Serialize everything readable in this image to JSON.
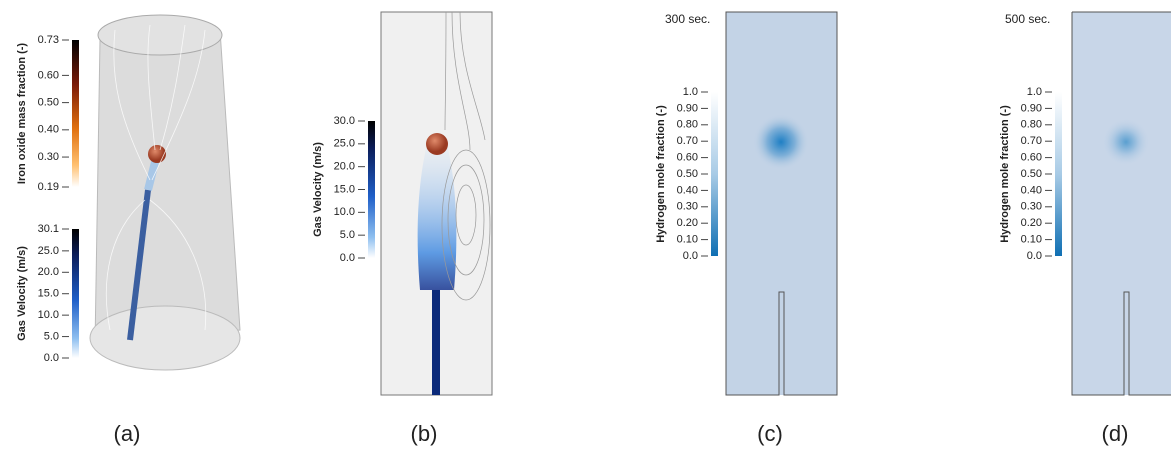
{
  "panels": [
    {
      "caption": "(a)",
      "colorbars": [
        {
          "label": "Iron oxide mass fraction (-)",
          "ticks": [
            "0.73",
            "0.60",
            "0.50",
            "0.40",
            "0.30",
            "0.19"
          ]
        },
        {
          "label": "Gas Velocity (m/s)",
          "ticks": [
            "30.1",
            "25.0",
            "20.0",
            "15.0",
            "10.0",
            "5.0",
            "0.0"
          ]
        }
      ]
    },
    {
      "caption": "(b)",
      "colorbars": [
        {
          "label": "Gas Velocity (m/s)",
          "ticks": [
            "30.0",
            "25.0",
            "20.0",
            "15.0",
            "10.0",
            "5.0",
            "0.0"
          ]
        }
      ]
    },
    {
      "caption": "(c)",
      "time": "300 sec.",
      "colorbars": [
        {
          "label": "Hydrogen mole fraction (-)",
          "ticks": [
            "1.0",
            "0.90",
            "0.80",
            "0.70",
            "0.60",
            "0.50",
            "0.40",
            "0.30",
            "0.20",
            "0.10",
            "0.0"
          ]
        }
      ]
    },
    {
      "caption": "(d)",
      "time": "500 sec.",
      "colorbars": [
        {
          "label": "Hydrogen mole fraction (-)",
          "ticks": [
            "1.0",
            "0.90",
            "0.80",
            "0.70",
            "0.60",
            "0.50",
            "0.40",
            "0.30",
            "0.20",
            "0.10",
            "0.0"
          ]
        }
      ]
    }
  ]
}
